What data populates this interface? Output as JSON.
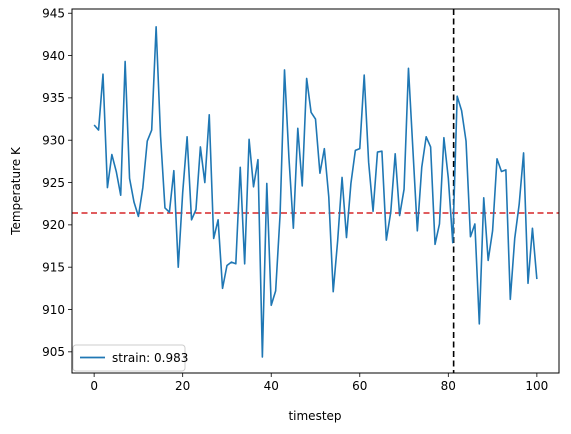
{
  "chart_data": {
    "type": "line",
    "xlabel": "timestep",
    "ylabel": "Temperature K",
    "xlim": [
      -5,
      105
    ],
    "ylim": [
      902.5,
      945.5
    ],
    "xticks": [
      0,
      20,
      40,
      60,
      80,
      100
    ],
    "yticks": [
      905,
      910,
      915,
      920,
      925,
      930,
      935,
      940,
      945
    ],
    "grid": false,
    "legend_position": "lower-left",
    "series": [
      {
        "name": "strain: 0.983",
        "color": "#1f77b4",
        "x": [
          0,
          1,
          2,
          3,
          4,
          5,
          6,
          7,
          8,
          9,
          10,
          11,
          12,
          13,
          14,
          15,
          16,
          17,
          18,
          19,
          20,
          21,
          22,
          23,
          24,
          25,
          26,
          27,
          28,
          29,
          30,
          31,
          32,
          33,
          34,
          35,
          36,
          37,
          38,
          39,
          40,
          41,
          42,
          43,
          44,
          45,
          46,
          47,
          48,
          49,
          50,
          51,
          52,
          53,
          54,
          55,
          56,
          57,
          58,
          59,
          60,
          61,
          62,
          63,
          64,
          65,
          66,
          67,
          68,
          69,
          70,
          71,
          72,
          73,
          74,
          75,
          76,
          77,
          78,
          79,
          80,
          81,
          82,
          83,
          84,
          85,
          86,
          87,
          88,
          89,
          90,
          91,
          92,
          93,
          94,
          95,
          96,
          97,
          98,
          99,
          100
        ],
        "values": [
          931.8,
          931.2,
          937.8,
          924.4,
          928.3,
          926.3,
          923.5,
          939.3,
          925.5,
          922.7,
          921.0,
          924.4,
          929.9,
          931.2,
          943.4,
          930.5,
          922.0,
          921.5,
          926.4,
          915.0,
          923.8,
          930.4,
          920.6,
          921.8,
          929.2,
          925.0,
          933.0,
          918.4,
          920.6,
          912.5,
          915.2,
          915.6,
          915.4,
          926.8,
          915.4,
          930.1,
          924.5,
          927.7,
          904.4,
          924.9,
          910.5,
          912.2,
          921.2,
          938.3,
          927.9,
          919.6,
          931.4,
          924.6,
          937.3,
          933.3,
          932.5,
          926.1,
          929.0,
          923.3,
          912.1,
          918.1,
          925.6,
          918.5,
          924.9,
          928.8,
          929.0,
          937.7,
          927.4,
          921.6,
          928.6,
          928.7,
          918.2,
          921.5,
          928.4,
          921.1,
          924.2,
          938.5,
          928.9,
          919.3,
          926.8,
          930.4,
          929.2,
          917.7,
          920.1,
          930.3,
          925.5,
          917.9,
          935.2,
          933.5,
          929.9,
          918.6,
          920.1,
          908.3,
          923.2,
          915.8,
          919.3,
          927.8,
          926.3,
          926.5,
          911.2,
          918.4,
          922.4,
          928.5,
          913.1,
          919.6,
          913.6
        ]
      }
    ],
    "reference_lines": [
      {
        "orientation": "horizontal",
        "value": 921.4,
        "color": "#d62728",
        "style": "dashed"
      },
      {
        "orientation": "vertical",
        "value": 81.2,
        "color": "#000000",
        "style": "dashed"
      }
    ]
  }
}
